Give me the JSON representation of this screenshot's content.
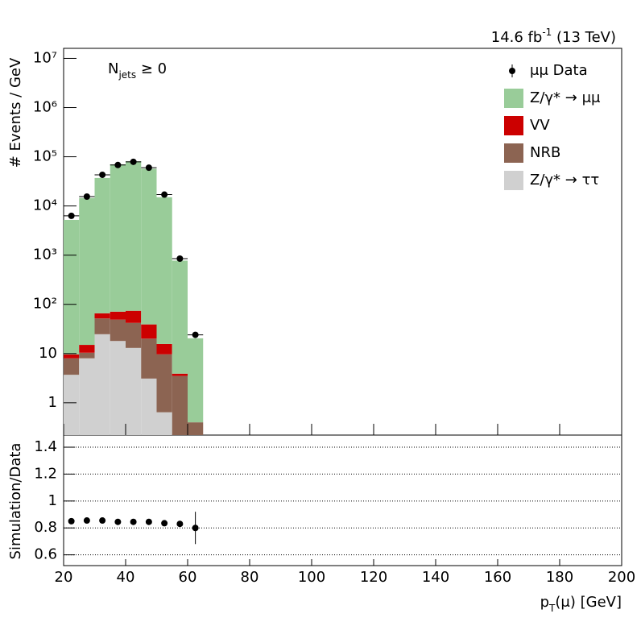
{
  "chart_data": {
    "type": "histogram",
    "lumi": {
      "main": "14.6 fb",
      "sup": "-1",
      "rest": " (13 TeV)"
    },
    "annotation": {
      "main": "N",
      "sub": "jets",
      "rest": " ≥ 0"
    },
    "ylabel": "# Events / GeV",
    "xlabel": {
      "main": "p",
      "sub": "T",
      "rest": "(μ) [GeV]"
    },
    "bins": [
      20,
      25,
      30,
      35,
      40,
      45,
      50,
      55,
      60,
      65
    ],
    "xlim": [
      20,
      200
    ],
    "xticks": [
      20,
      40,
      60,
      80,
      100,
      120,
      140,
      160,
      180,
      200
    ],
    "log_y": true,
    "ylim": [
      0.22,
      16000000
    ],
    "yticks": [
      {
        "value": 1,
        "label": "1"
      },
      {
        "value": 10,
        "label": "10"
      },
      {
        "value": 100,
        "label": "10²"
      },
      {
        "value": 1000,
        "label": "10³"
      },
      {
        "value": 10000,
        "label": "10⁴"
      },
      {
        "value": 100000,
        "label": "10⁵"
      },
      {
        "value": 1000000,
        "label": "10⁶"
      },
      {
        "value": 10000000,
        "label": "10⁷"
      }
    ],
    "data": {
      "name": "μμ Data",
      "color": "#000000",
      "values": [
        6300,
        15500,
        43000,
        68000,
        79000,
        60000,
        17000,
        850,
        24
      ]
    },
    "series": [
      {
        "name": "Z/γ* → ττ",
        "color": "#d0d0d0",
        "values": [
          3.7,
          8,
          24.7,
          18,
          13,
          3.1,
          0.64,
          0,
          0
        ]
      },
      {
        "name": "NRB",
        "color": "#8c6452",
        "values": [
          4.3,
          2.4,
          27,
          31,
          29,
          17,
          9,
          3.5,
          0.4
        ]
      },
      {
        "name": "VV",
        "color": "#cc0000",
        "values": [
          1.6,
          4.6,
          14,
          22,
          32,
          19,
          6,
          0.4,
          0
        ]
      },
      {
        "name": "Z/γ* → μμ",
        "color": "#99cc99",
        "values": [
          5190,
          14500,
          37000,
          70000,
          81000,
          57000,
          15000,
          770,
          20
        ]
      }
    ],
    "legend": "upper right",
    "ratio": {
      "ylabel": "Simulation/Data",
      "values": [
        0.85,
        0.855,
        0.855,
        0.845,
        0.845,
        0.845,
        0.835,
        0.83,
        0.8
      ],
      "errors": [
        0.005,
        0.005,
        0.004,
        0.004,
        0.004,
        0.004,
        0.006,
        0.02,
        0.12
      ],
      "ylim": [
        0.52,
        1.49
      ],
      "yticks": [
        0.6,
        0.8,
        1,
        1.2,
        1.4
      ],
      "grid": true
    }
  }
}
